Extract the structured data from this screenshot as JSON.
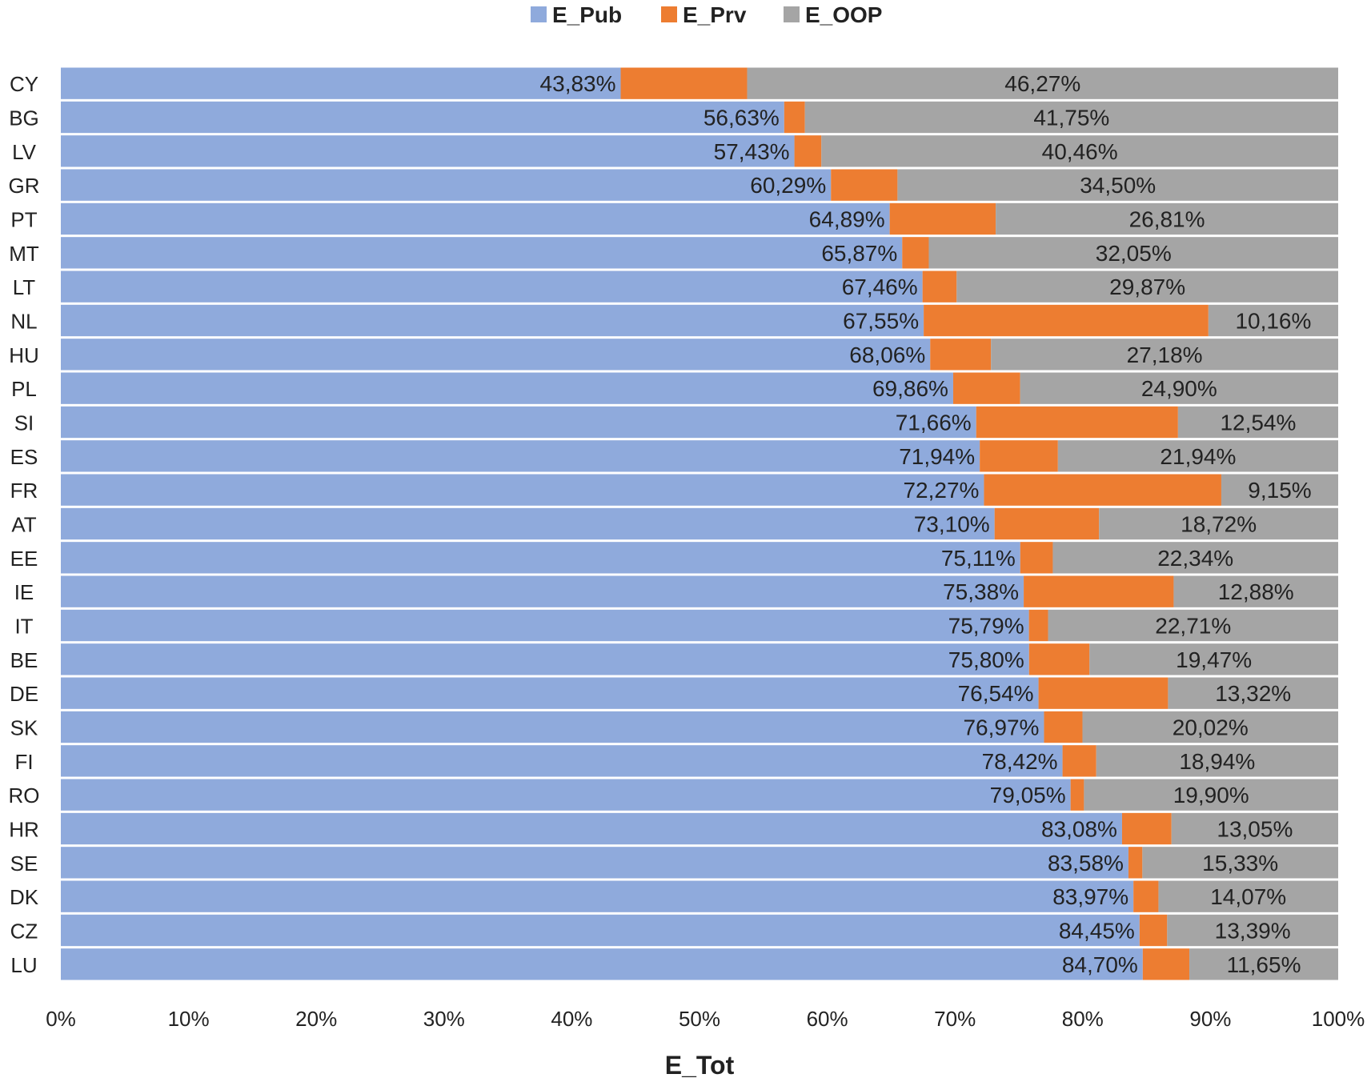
{
  "chart_data": {
    "type": "bar",
    "orientation": "horizontal",
    "stacked": true,
    "title": "",
    "xlabel": "E_Tot",
    "ylabel": "",
    "xlim": [
      0,
      100
    ],
    "x_ticks": [
      "0%",
      "10%",
      "20%",
      "30%",
      "40%",
      "50%",
      "60%",
      "70%",
      "80%",
      "90%",
      "100%"
    ],
    "legend_position": "top",
    "categories": [
      "CY",
      "BG",
      "LV",
      "GR",
      "PT",
      "MT",
      "LT",
      "NL",
      "HU",
      "PL",
      "SI",
      "ES",
      "FR",
      "AT",
      "EE",
      "IE",
      "IT",
      "BE",
      "DE",
      "SK",
      "FI",
      "RO",
      "HR",
      "SE",
      "DK",
      "CZ",
      "LU"
    ],
    "series": [
      {
        "name": "E_Pub",
        "color": "#8FAADC",
        "values": [
          43.83,
          56.63,
          57.43,
          60.29,
          64.89,
          65.87,
          67.46,
          67.55,
          68.06,
          69.86,
          71.66,
          71.94,
          72.27,
          73.1,
          75.11,
          75.38,
          75.79,
          75.8,
          76.54,
          76.97,
          78.42,
          79.05,
          83.08,
          83.58,
          83.97,
          84.45,
          84.7
        ],
        "labels": [
          "43,83%",
          "56,63%",
          "57,43%",
          "60,29%",
          "64,89%",
          "65,87%",
          "67,46%",
          "67,55%",
          "68,06%",
          "69,86%",
          "71,66%",
          "71,94%",
          "72,27%",
          "73,10%",
          "75,11%",
          "75,38%",
          "75,79%",
          "75,80%",
          "76,54%",
          "76,97%",
          "78,42%",
          "79,05%",
          "83,08%",
          "83,58%",
          "83,97%",
          "84,45%",
          "84,70%"
        ]
      },
      {
        "name": "E_Prv",
        "color": "#ED7D31",
        "values": [
          9.9,
          1.62,
          2.11,
          5.21,
          8.3,
          2.08,
          2.67,
          22.29,
          4.76,
          5.24,
          15.8,
          6.12,
          18.58,
          8.18,
          2.55,
          11.74,
          1.5,
          4.73,
          10.14,
          3.01,
          2.64,
          1.05,
          3.87,
          1.09,
          1.96,
          2.16,
          3.65
        ],
        "labels": []
      },
      {
        "name": "E_OOP",
        "color": "#A5A5A5",
        "values": [
          46.27,
          41.75,
          40.46,
          34.5,
          26.81,
          32.05,
          29.87,
          10.16,
          27.18,
          24.9,
          12.54,
          21.94,
          9.15,
          18.72,
          22.34,
          12.88,
          22.71,
          19.47,
          13.32,
          20.02,
          18.94,
          19.9,
          13.05,
          15.33,
          14.07,
          13.39,
          11.65
        ],
        "labels": [
          "46,27%",
          "41,75%",
          "40,46%",
          "34,50%",
          "26,81%",
          "32,05%",
          "29,87%",
          "10,16%",
          "27,18%",
          "24,90%",
          "12,54%",
          "21,94%",
          "9,15%",
          "18,72%",
          "22,34%",
          "12,88%",
          "22,71%",
          "19,47%",
          "13,32%",
          "20,02%",
          "18,94%",
          "19,90%",
          "13,05%",
          "15,33%",
          "14,07%",
          "13,39%",
          "11,65%"
        ]
      }
    ]
  }
}
